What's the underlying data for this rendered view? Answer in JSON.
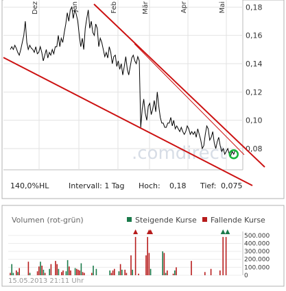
{
  "chart_data": [
    {
      "type": "line",
      "x_month_labels": [
        "Dez",
        "Jan",
        "Feb",
        "Mär",
        "Apr",
        "Mai"
      ],
      "ylim": [
        0.065,
        0.185
      ],
      "y_ticks": [
        0.08,
        0.1,
        0.12,
        0.14,
        0.16,
        0.18
      ],
      "y_tick_labels": [
        "0,08",
        "0,10",
        "0,12",
        "0,14",
        "0,16",
        "0,18"
      ],
      "grid": true,
      "series": [
        {
          "values": [
            0.15,
            0.152,
            0.15,
            0.153,
            0.151,
            0.148,
            0.146,
            0.15,
            0.155,
            0.16,
            0.17,
            0.155,
            0.15,
            0.153,
            0.151,
            0.15,
            0.148,
            0.152,
            0.147,
            0.148,
            0.152,
            0.148,
            0.142,
            0.146,
            0.15,
            0.144,
            0.148,
            0.146,
            0.15,
            0.147,
            0.152,
            0.152,
            0.16,
            0.152,
            0.158,
            0.155,
            0.162,
            0.168,
            0.176,
            0.17,
            0.178,
            0.18,
            0.172,
            0.178,
            0.175,
            0.17,
            0.16,
            0.152,
            0.158,
            0.15,
            0.165,
            0.172,
            0.178,
            0.165,
            0.17,
            0.162,
            0.16,
            0.168,
            0.165,
            0.152,
            0.158,
            0.155,
            0.15,
            0.145,
            0.148,
            0.144,
            0.152,
            0.148,
            0.14,
            0.145,
            0.146,
            0.138,
            0.142,
            0.136,
            0.14,
            0.132,
            0.138,
            0.145,
            0.136,
            0.132,
            0.138,
            0.144,
            0.146,
            0.142,
            0.14,
            0.145,
            0.142,
            0.095,
            0.108,
            0.115,
            0.105,
            0.1,
            0.11,
            0.112,
            0.104,
            0.108,
            0.114,
            0.106,
            0.12,
            0.11,
            0.102,
            0.098,
            0.098,
            0.095,
            0.095,
            0.098,
            0.098,
            0.102,
            0.096,
            0.1,
            0.094,
            0.096,
            0.094,
            0.092,
            0.095,
            0.092,
            0.09,
            0.092,
            0.096,
            0.094,
            0.09,
            0.092,
            0.09,
            0.092,
            0.088,
            0.094,
            0.09,
            0.086,
            0.08,
            0.082,
            0.09,
            0.096,
            0.094,
            0.086,
            0.088,
            0.092,
            0.084,
            0.08,
            0.085,
            0.088,
            0.082,
            0.078,
            0.08,
            0.076,
            0.078,
            0.08,
            0.076,
            0.075,
            0.078,
            0.076,
            0.079
          ]
        }
      ],
      "annotations": {
        "range_pct": "140,0%HL",
        "interval": "Intervall: 1 Tag",
        "high_label": "Hoch:",
        "high_value": "0,18",
        "low_label": "Tief:",
        "low_value": "0,075",
        "watermark": ".comdirect"
      },
      "trendlines_color": "#cc1111",
      "line_color": "#000000"
    },
    {
      "type": "bar",
      "title": "Volumen (rot-grün)",
      "legend": [
        {
          "label": "Steigende Kurse",
          "color": "#1a7a4a"
        },
        {
          "label": "Fallende Kurse",
          "color": "#b71c1c"
        }
      ],
      "ylim": [
        0,
        550000
      ],
      "y_ticks": [
        0,
        100000,
        200000,
        300000,
        400000,
        500000
      ],
      "y_tick_labels": [
        "0",
        "100.000",
        "200.000",
        "300.000",
        "400.000",
        "500.000"
      ],
      "values": [
        30000,
        140000,
        30000,
        0,
        60000,
        40000,
        90000,
        0,
        0,
        0,
        0,
        0,
        170000,
        30000,
        0,
        0,
        0,
        0,
        50000,
        110000,
        170000,
        120000,
        70000,
        30000,
        0,
        0,
        80000,
        140000,
        0,
        0,
        180000,
        140000,
        80000,
        0,
        40000,
        60000,
        0,
        50000,
        190000,
        110000,
        60000,
        0,
        0,
        90000,
        80000,
        70000,
        60000,
        150000,
        40000,
        30000,
        0,
        0,
        0,
        0,
        30000,
        120000,
        0,
        80000,
        0,
        0,
        0,
        0,
        0,
        0,
        0,
        0,
        60000,
        30000,
        60000,
        80000,
        0,
        0,
        50000,
        140000,
        70000,
        0,
        70000,
        30000,
        0,
        0,
        250000,
        70000,
        0,
        480000,
        0,
        20000,
        0,
        0,
        0,
        0,
        250000,
        480000,
        280000,
        80000,
        0,
        0,
        0,
        0,
        0,
        0,
        0,
        300000,
        280000,
        30000,
        60000,
        0,
        0,
        0,
        20000,
        60000,
        100000,
        0,
        0,
        0,
        0,
        0,
        0,
        0,
        0,
        0,
        180000,
        0,
        0,
        0,
        0,
        0,
        0,
        0,
        0,
        40000,
        0,
        0,
        0,
        80000,
        0,
        0,
        0,
        0,
        0,
        60000,
        0,
        480000,
        0,
        480000,
        0,
        0,
        0,
        0,
        0,
        0,
        0
      ],
      "up_flags": [
        0,
        1,
        1,
        0,
        0,
        1,
        0,
        0,
        0,
        0,
        0,
        0,
        0,
        1,
        0,
        0,
        0,
        0,
        0,
        0,
        1,
        0,
        1,
        0,
        0,
        0,
        1,
        0,
        0,
        0,
        0,
        0,
        1,
        0,
        0,
        0,
        0,
        1,
        1,
        0,
        0,
        0,
        0,
        1,
        0,
        0,
        0,
        1,
        0,
        0,
        0,
        0,
        0,
        0,
        0,
        1,
        0,
        1,
        0,
        0,
        0,
        0,
        0,
        0,
        0,
        0,
        1,
        0,
        0,
        0,
        0,
        0,
        1,
        0,
        1,
        0,
        0,
        0,
        0,
        0,
        0,
        1,
        0,
        0,
        0,
        0,
        0,
        0,
        0,
        0,
        0,
        0,
        0,
        1,
        0,
        0,
        0,
        0,
        0,
        0,
        0,
        1,
        0,
        1,
        0,
        0,
        0,
        0,
        0,
        1,
        0,
        0,
        0,
        0,
        0,
        0,
        0,
        0,
        0,
        0,
        0,
        1,
        0,
        0,
        0,
        0,
        0,
        0,
        0,
        0,
        0,
        0,
        0,
        0,
        1,
        0,
        0,
        0,
        0,
        0,
        1,
        0,
        1,
        0,
        1,
        0,
        0,
        0,
        0,
        0,
        0,
        0
      ],
      "overflow_markers": [
        {
          "index": 83,
          "color": "#b71c1c"
        },
        {
          "index": 92,
          "color": "#b71c1c"
        },
        {
          "index": 93,
          "color": "#b71c1c"
        },
        {
          "index": 141,
          "color": "#1a7a4a"
        },
        {
          "index": 144,
          "color": "#1a7a4a"
        }
      ],
      "timestamp": "15.05.2013 21:11 Uhr"
    }
  ]
}
